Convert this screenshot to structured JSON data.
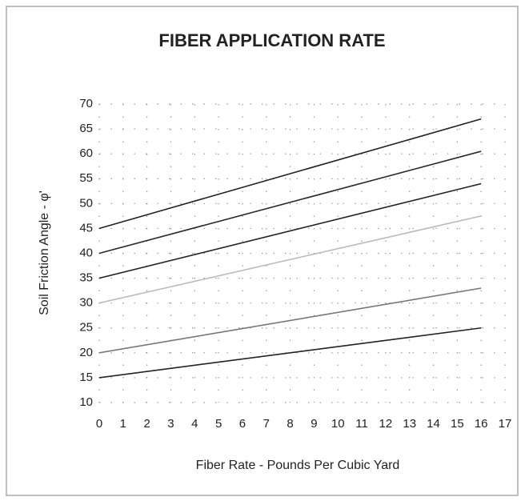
{
  "chart_data": {
    "type": "line",
    "title": "FIBER APPLICATION RATE",
    "x_label": "Fiber Rate - Pounds Per Cubic Yard",
    "y_label": "Soil Friction Angle - φ'",
    "x": [
      0,
      16
    ],
    "series": [
      {
        "color": "#222222",
        "values": [
          45,
          67
        ]
      },
      {
        "color": "#2a2a2a",
        "values": [
          40,
          60.5
        ]
      },
      {
        "color": "#222222",
        "values": [
          35,
          54
        ]
      },
      {
        "color": "#bbbbbb",
        "values": [
          30,
          47.5
        ]
      },
      {
        "color": "#777777",
        "values": [
          20,
          33
        ]
      },
      {
        "color": "#222222",
        "values": [
          15,
          25
        ]
      }
    ],
    "xlim": [
      0,
      17
    ],
    "xticks": [
      0,
      1,
      2,
      3,
      4,
      5,
      6,
      7,
      8,
      9,
      10,
      11,
      12,
      13,
      14,
      15,
      16,
      17
    ],
    "ylim": [
      10,
      70
    ],
    "yticks": [
      10,
      15,
      20,
      25,
      30,
      35,
      40,
      45,
      50,
      55,
      60,
      65,
      70
    ],
    "grid": true
  }
}
